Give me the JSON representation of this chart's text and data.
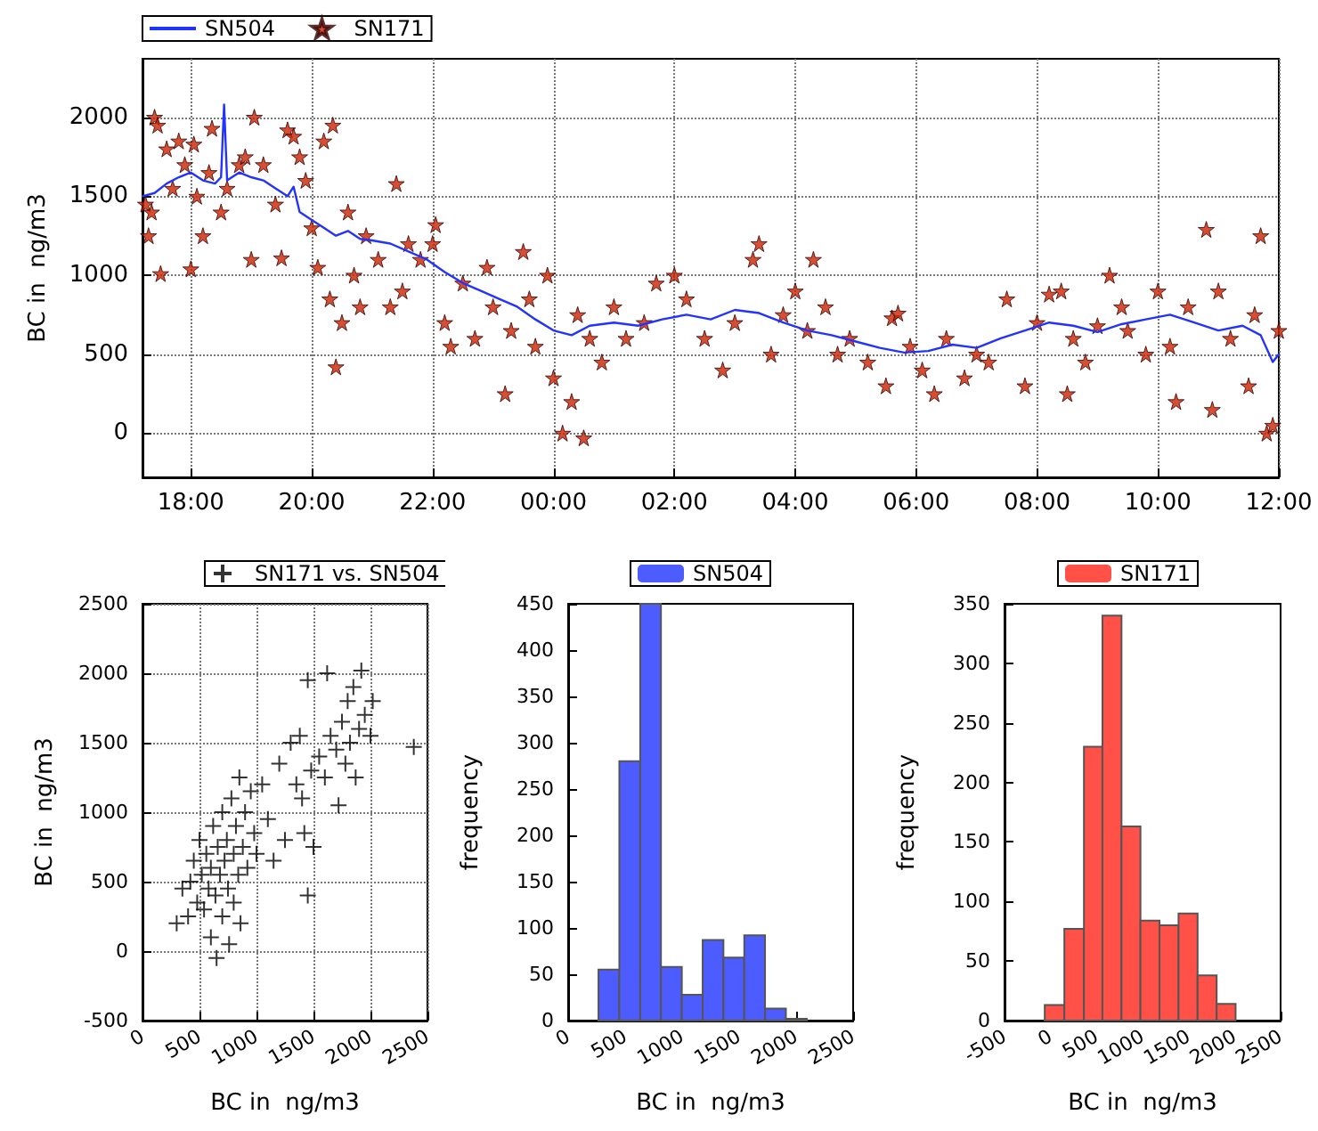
{
  "chart_data": [
    {
      "type": "line",
      "ylabel": "BC in  ng/m3",
      "legend": "top left",
      "grid": true,
      "xlim": [
        "2000-01-01T17:12",
        "2000-01-02T12:00"
      ],
      "xticks": [
        {
          "value": "2000-01-01T18:00",
          "label": "18:00"
        },
        {
          "value": "2000-01-01T20:00",
          "label": "20:00"
        },
        {
          "value": "2000-01-01T22:00",
          "label": "22:00"
        },
        {
          "value": "2000-01-02T00:00",
          "label": "00:00"
        },
        {
          "value": "2000-01-02T02:00",
          "label": "02:00"
        },
        {
          "value": "2000-01-02T04:00",
          "label": "04:00"
        },
        {
          "value": "2000-01-02T06:00",
          "label": "06:00"
        },
        {
          "value": "2000-01-02T08:00",
          "label": "08:00"
        },
        {
          "value": "2000-01-02T10:00",
          "label": "10:00"
        },
        {
          "value": "2000-01-02T12:00",
          "label": "12:00"
        }
      ],
      "ylim": [
        -280,
        2370
      ],
      "yticks": [
        0,
        500,
        1000,
        1500,
        2000
      ],
      "series": [
        {
          "name": "SN504",
          "marker": "none",
          "line_style": "solid",
          "color": "#2233ff",
          "x": [
            "2000-01-01T17:12",
            "2000-01-01T17:24",
            "2000-01-01T17:36",
            "2000-01-01T17:48",
            "2000-01-01T18:00",
            "2000-01-01T18:12",
            "2000-01-01T18:24",
            "2000-01-01T18:30",
            "2000-01-01T18:33",
            "2000-01-01T18:36",
            "2000-01-01T18:48",
            "2000-01-01T19:00",
            "2000-01-01T19:12",
            "2000-01-01T19:24",
            "2000-01-01T19:36",
            "2000-01-01T19:42",
            "2000-01-01T19:48",
            "2000-01-01T20:00",
            "2000-01-01T20:12",
            "2000-01-01T20:24",
            "2000-01-01T20:36",
            "2000-01-01T20:48",
            "2000-01-01T21:00",
            "2000-01-01T21:18",
            "2000-01-01T21:36",
            "2000-01-01T21:54",
            "2000-01-01T22:12",
            "2000-01-01T22:30",
            "2000-01-01T22:48",
            "2000-01-01T23:06",
            "2000-01-01T23:24",
            "2000-01-01T23:42",
            "2000-01-02T00:00",
            "2000-01-02T00:18",
            "2000-01-02T00:36",
            "2000-01-02T01:00",
            "2000-01-02T01:24",
            "2000-01-02T01:48",
            "2000-01-02T02:12",
            "2000-01-02T02:36",
            "2000-01-02T03:00",
            "2000-01-02T03:24",
            "2000-01-02T03:48",
            "2000-01-02T04:12",
            "2000-01-02T04:36",
            "2000-01-02T05:00",
            "2000-01-02T05:24",
            "2000-01-02T05:48",
            "2000-01-02T06:12",
            "2000-01-02T06:36",
            "2000-01-02T07:00",
            "2000-01-02T07:24",
            "2000-01-02T07:48",
            "2000-01-02T08:12",
            "2000-01-02T08:36",
            "2000-01-02T09:00",
            "2000-01-02T09:24",
            "2000-01-02T09:48",
            "2000-01-02T10:12",
            "2000-01-02T10:36",
            "2000-01-02T11:00",
            "2000-01-02T11:24",
            "2000-01-02T11:42",
            "2000-01-02T11:54",
            "2000-01-02T12:00"
          ],
          "values": [
            1500,
            1520,
            1580,
            1620,
            1650,
            1600,
            1580,
            1620,
            2080,
            1600,
            1650,
            1620,
            1600,
            1550,
            1500,
            1560,
            1400,
            1350,
            1300,
            1250,
            1280,
            1230,
            1220,
            1200,
            1150,
            1100,
            1020,
            950,
            900,
            850,
            800,
            720,
            650,
            620,
            680,
            700,
            680,
            720,
            750,
            720,
            780,
            760,
            700,
            650,
            620,
            580,
            540,
            510,
            520,
            560,
            540,
            600,
            650,
            700,
            680,
            640,
            690,
            720,
            750,
            700,
            650,
            680,
            620,
            450,
            500
          ]
        },
        {
          "name": "SN171",
          "type": "scatter",
          "marker": "star",
          "color": "#cc2200",
          "x": [
            "2000-01-01T17:15",
            "2000-01-01T17:18",
            "2000-01-01T17:21",
            "2000-01-01T17:24",
            "2000-01-01T17:27",
            "2000-01-01T17:30",
            "2000-01-01T17:36",
            "2000-01-01T17:42",
            "2000-01-01T17:48",
            "2000-01-01T17:54",
            "2000-01-01T18:00",
            "2000-01-01T18:03",
            "2000-01-01T18:06",
            "2000-01-01T18:12",
            "2000-01-01T18:18",
            "2000-01-01T18:21",
            "2000-01-01T18:30",
            "2000-01-01T18:36",
            "2000-01-01T18:48",
            "2000-01-01T18:54",
            "2000-01-01T19:00",
            "2000-01-01T19:03",
            "2000-01-01T19:12",
            "2000-01-01T19:24",
            "2000-01-01T19:30",
            "2000-01-01T19:36",
            "2000-01-01T19:42",
            "2000-01-01T19:48",
            "2000-01-01T19:54",
            "2000-01-01T20:00",
            "2000-01-01T20:06",
            "2000-01-01T20:12",
            "2000-01-01T20:18",
            "2000-01-01T20:21",
            "2000-01-01T20:24",
            "2000-01-01T20:30",
            "2000-01-01T20:36",
            "2000-01-01T20:42",
            "2000-01-01T20:48",
            "2000-01-01T20:54",
            "2000-01-01T21:06",
            "2000-01-01T21:18",
            "2000-01-01T21:24",
            "2000-01-01T21:30",
            "2000-01-01T21:36",
            "2000-01-01T21:48",
            "2000-01-01T22:00",
            "2000-01-01T22:03",
            "2000-01-01T22:12",
            "2000-01-01T22:18",
            "2000-01-01T22:30",
            "2000-01-01T22:42",
            "2000-01-01T22:54",
            "2000-01-01T23:00",
            "2000-01-01T23:12",
            "2000-01-01T23:18",
            "2000-01-01T23:30",
            "2000-01-01T23:36",
            "2000-01-01T23:42",
            "2000-01-01T23:54",
            "2000-01-02T00:00",
            "2000-01-02T00:09",
            "2000-01-02T00:18",
            "2000-01-02T00:24",
            "2000-01-02T00:30",
            "2000-01-02T00:36",
            "2000-01-02T00:48",
            "2000-01-02T01:00",
            "2000-01-02T01:12",
            "2000-01-02T01:30",
            "2000-01-02T01:42",
            "2000-01-02T02:00",
            "2000-01-02T02:12",
            "2000-01-02T02:30",
            "2000-01-02T02:48",
            "2000-01-02T03:00",
            "2000-01-02T03:18",
            "2000-01-02T03:24",
            "2000-01-02T03:36",
            "2000-01-02T03:48",
            "2000-01-02T04:00",
            "2000-01-02T04:12",
            "2000-01-02T04:18",
            "2000-01-02T04:30",
            "2000-01-02T04:42",
            "2000-01-02T04:54",
            "2000-01-02T05:12",
            "2000-01-02T05:30",
            "2000-01-02T05:36",
            "2000-01-02T05:42",
            "2000-01-02T05:54",
            "2000-01-02T06:06",
            "2000-01-02T06:18",
            "2000-01-02T06:30",
            "2000-01-02T06:48",
            "2000-01-02T07:00",
            "2000-01-02T07:12",
            "2000-01-02T07:30",
            "2000-01-02T07:48",
            "2000-01-02T08:00",
            "2000-01-02T08:12",
            "2000-01-02T08:24",
            "2000-01-02T08:30",
            "2000-01-02T08:36",
            "2000-01-02T08:48",
            "2000-01-02T09:00",
            "2000-01-02T09:12",
            "2000-01-02T09:24",
            "2000-01-02T09:30",
            "2000-01-02T09:48",
            "2000-01-02T10:00",
            "2000-01-02T10:12",
            "2000-01-02T10:18",
            "2000-01-02T10:30",
            "2000-01-02T10:48",
            "2000-01-02T10:54",
            "2000-01-02T11:00",
            "2000-01-02T11:12",
            "2000-01-02T11:30",
            "2000-01-02T11:36",
            "2000-01-02T11:42",
            "2000-01-02T11:48",
            "2000-01-02T11:54",
            "2000-01-02T12:00"
          ],
          "values": [
            1450,
            1250,
            1400,
            2000,
            1950,
            1010,
            1800,
            1550,
            1850,
            1700,
            1040,
            1830,
            1500,
            1250,
            1650,
            1930,
            1400,
            1550,
            1700,
            1750,
            1100,
            2000,
            1700,
            1450,
            1110,
            1920,
            1880,
            1750,
            1600,
            1300,
            1050,
            1850,
            850,
            1950,
            420,
            700,
            1400,
            1000,
            800,
            1250,
            1100,
            800,
            1580,
            900,
            1200,
            1100,
            1200,
            1320,
            700,
            550,
            950,
            600,
            1050,
            800,
            250,
            650,
            1150,
            850,
            550,
            1000,
            350,
            0,
            200,
            750,
            -30,
            600,
            450,
            800,
            600,
            700,
            950,
            1000,
            850,
            600,
            400,
            700,
            1100,
            1200,
            500,
            750,
            900,
            650,
            1100,
            800,
            500,
            600,
            450,
            300,
            730,
            760,
            550,
            400,
            250,
            600,
            350,
            500,
            450,
            850,
            300,
            700,
            880,
            900,
            250,
            600,
            450,
            680,
            1000,
            800,
            650,
            500,
            900,
            550,
            200,
            800,
            1290,
            150,
            900,
            600,
            300,
            750,
            1250,
            0,
            50,
            650
          ]
        }
      ]
    },
    {
      "type": "scatter",
      "xlabel": "BC in  ng/m3",
      "ylabel": "BC in  ng/m3",
      "legend": "top",
      "grid": true,
      "marker": "cross",
      "xlim": [
        0,
        2500
      ],
      "xticks": [
        0,
        500,
        1000,
        1500,
        2000,
        2500
      ],
      "ylim": [
        -500,
        2500
      ],
      "yticks": [
        -500,
        0,
        500,
        1000,
        1500,
        2000,
        2500
      ],
      "series": [
        {
          "name": "SN171 vs. SN504",
          "color": "#000000",
          "x": [
            300,
            350,
            400,
            420,
            450,
            480,
            500,
            520,
            540,
            560,
            580,
            600,
            600,
            620,
            640,
            650,
            660,
            680,
            700,
            700,
            720,
            740,
            750,
            760,
            780,
            800,
            800,
            820,
            840,
            850,
            860,
            880,
            900,
            920,
            950,
            980,
            1000,
            1050,
            1100,
            1150,
            1200,
            1250,
            1300,
            1350,
            1380,
            1400,
            1420,
            1450,
            1450,
            1480,
            1500,
            1550,
            1600,
            1620,
            1650,
            1700,
            1720,
            1750,
            1780,
            1800,
            1820,
            1850,
            1870,
            1900,
            1920,
            1950,
            2000,
            2020,
            2380
          ],
          "values": [
            200,
            450,
            250,
            500,
            650,
            350,
            800,
            550,
            300,
            700,
            450,
            100,
            600,
            900,
            400,
            -50,
            750,
            550,
            1000,
            250,
            650,
            800,
            450,
            50,
            1100,
            700,
            350,
            900,
            550,
            1250,
            200,
            750,
            1000,
            600,
            1150,
            850,
            700,
            1200,
            950,
            650,
            1350,
            800,
            1500,
            1200,
            1550,
            1100,
            850,
            1950,
            400,
            1300,
            750,
            1400,
            1250,
            2000,
            1550,
            1450,
            1050,
            1650,
            1350,
            1800,
            1500,
            1900,
            1250,
            1600,
            2020,
            1700,
            1550,
            1800,
            1470
          ]
        }
      ]
    },
    {
      "type": "histogram",
      "xlabel": "BC in  ng/m3",
      "ylabel": "frequency",
      "legend": "top",
      "xlim": [
        0,
        2500
      ],
      "xticks": [
        0,
        500,
        1000,
        1500,
        2000,
        2500
      ],
      "ylim": [
        0,
        450
      ],
      "yticks": [
        0,
        50,
        100,
        150,
        200,
        250,
        300,
        350,
        400,
        450
      ],
      "bins": [
        266,
        449,
        632,
        814,
        997,
        1180,
        1362,
        1545,
        1727,
        1910,
        2093
      ],
      "series": [
        {
          "name": "SN504",
          "color": "#4d5cff",
          "values": [
            55,
            280,
            450,
            58,
            28,
            87,
            68,
            92,
            13,
            2
          ]
        }
      ]
    },
    {
      "type": "histogram",
      "xlabel": "BC in  ng/m3",
      "ylabel": "frequency",
      "legend": "top",
      "xlim": [
        -500,
        2500
      ],
      "xticks": [
        -500,
        0,
        500,
        1000,
        1500,
        2000,
        2500
      ],
      "ylim": [
        0,
        350
      ],
      "yticks": [
        0,
        50,
        100,
        150,
        200,
        250,
        300,
        350
      ],
      "bins": [
        -63,
        150,
        363,
        564,
        771,
        977,
        1184,
        1391,
        1598,
        1805,
        2011
      ],
      "series": [
        {
          "name": "SN171",
          "color": "#ff5148",
          "values": [
            13,
            77,
            230,
            340,
            163,
            84,
            80,
            90,
            38,
            14
          ]
        }
      ]
    }
  ]
}
